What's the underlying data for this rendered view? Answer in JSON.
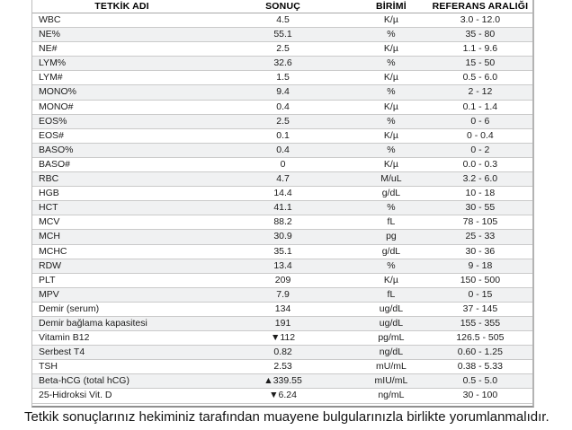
{
  "table": {
    "columns": [
      "TETKİK ADI",
      "SONUÇ",
      "BİRİMİ",
      "REFERANS ARALIĞI"
    ],
    "rows": [
      {
        "name": "WBC",
        "result": "4.5",
        "unit": "K/µ",
        "range": "3.0 - 12.0"
      },
      {
        "name": "NE%",
        "result": "55.1",
        "unit": "%",
        "range": "35 - 80"
      },
      {
        "name": "NE#",
        "result": "2.5",
        "unit": "K/µ",
        "range": "1.1 - 9.6"
      },
      {
        "name": "LYM%",
        "result": "32.6",
        "unit": "%",
        "range": "15 - 50"
      },
      {
        "name": "LYM#",
        "result": "1.5",
        "unit": "K/µ",
        "range": "0.5 - 6.0"
      },
      {
        "name": "MONO%",
        "result": "9.4",
        "unit": "%",
        "range": "2 - 12"
      },
      {
        "name": "MONO#",
        "result": "0.4",
        "unit": "K/µ",
        "range": "0.1 - 1.4"
      },
      {
        "name": "EOS%",
        "result": "2.5",
        "unit": "%",
        "range": "0 - 6"
      },
      {
        "name": "EOS#",
        "result": "0.1",
        "unit": "K/µ",
        "range": "0 - 0.4"
      },
      {
        "name": "BASO%",
        "result": "0.4",
        "unit": "%",
        "range": "0 - 2"
      },
      {
        "name": "BASO#",
        "result": "0",
        "unit": "K/µ",
        "range": "0.0 - 0.3"
      },
      {
        "name": "RBC",
        "result": "4.7",
        "unit": "M/uL",
        "range": "3.2 - 6.0"
      },
      {
        "name": "HGB",
        "result": "14.4",
        "unit": "g/dL",
        "range": "10 - 18"
      },
      {
        "name": "HCT",
        "result": "41.1",
        "unit": "%",
        "range": "30 - 55"
      },
      {
        "name": "MCV",
        "result": "88.2",
        "unit": "fL",
        "range": "78 - 105"
      },
      {
        "name": "MCH",
        "result": "30.9",
        "unit": "pg",
        "range": "25 - 33"
      },
      {
        "name": "MCHC",
        "result": "35.1",
        "unit": "g/dL",
        "range": "30 - 36"
      },
      {
        "name": "RDW",
        "result": "13.4",
        "unit": "%",
        "range": "9 - 18"
      },
      {
        "name": "PLT",
        "result": "209",
        "unit": "K/µ",
        "range": "150 - 500"
      },
      {
        "name": "MPV",
        "result": "7.9",
        "unit": "fL",
        "range": "0 - 15"
      },
      {
        "name": "Demir (serum)",
        "result": "134",
        "unit": "ug/dL",
        "range": "37 - 145"
      },
      {
        "name": "Demir bağlama kapasitesi",
        "result": "191",
        "unit": "ug/dL",
        "range": "155 - 355"
      },
      {
        "name": "Vitamin B12",
        "result": "▼112",
        "unit": "pg/mL",
        "range": "126.5 - 505"
      },
      {
        "name": "Serbest T4",
        "result": "0.82",
        "unit": "ng/dL",
        "range": "0.60 - 1.25"
      },
      {
        "name": "TSH",
        "result": "2.53",
        "unit": "mU/mL",
        "range": "0.38 - 5.33"
      },
      {
        "name": "Beta-hCG (total hCG)",
        "result": "▲339.55",
        "unit": "mIU/mL",
        "range": "0.5 - 5.0"
      },
      {
        "name": "25-Hidroksi Vit. D",
        "result": "▼6.24",
        "unit": "ng/mL",
        "range": "30 - 100"
      }
    ]
  },
  "footer": {
    "text": "Tetkik sonuçlarınız hekiminiz tarafından muayene bulgularınızla birlikte yorumlanmalıdır."
  }
}
